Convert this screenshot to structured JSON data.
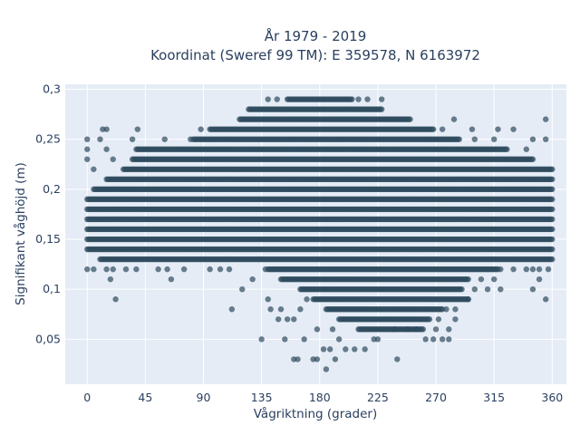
{
  "chart_data": {
    "type": "scatter",
    "title_line1": "År 1979 - 2019",
    "title_line2": "Koordinat (Sweref 99 TM): E 359578, N 6163972",
    "xlabel": "Vågriktning (grader)",
    "ylabel": "Signifikant våghöjd (m)",
    "xlim": [
      -17,
      371
    ],
    "ylim": [
      0.005,
      0.305
    ],
    "x_ticks": [
      0,
      45,
      90,
      135,
      180,
      225,
      270,
      315,
      360
    ],
    "x_tick_labels": [
      "0",
      "45",
      "90",
      "135",
      "180",
      "225",
      "270",
      "315",
      "360"
    ],
    "y_ticks": [
      0.05,
      0.1,
      0.15,
      0.2,
      0.25,
      0.3
    ],
    "y_tick_labels": [
      "0,05",
      "0,1",
      "0,15",
      "0,2",
      "0,25",
      "0,3"
    ],
    "grid": true,
    "marker_color": "#2f4b5e",
    "background": "#e5ecf6",
    "bands": [
      {
        "y": 0.29,
        "ranges": [
          [
            155,
            205
          ]
        ]
      },
      {
        "y": 0.28,
        "ranges": [
          [
            125,
            228
          ]
        ]
      },
      {
        "y": 0.27,
        "ranges": [
          [
            118,
            250
          ]
        ]
      },
      {
        "y": 0.26,
        "ranges": [
          [
            95,
            268
          ]
        ]
      },
      {
        "y": 0.25,
        "ranges": [
          [
            82,
            288
          ]
        ]
      },
      {
        "y": 0.24,
        "ranges": [
          [
            38,
            325
          ]
        ]
      },
      {
        "y": 0.23,
        "ranges": [
          [
            35,
            345
          ]
        ]
      },
      {
        "y": 0.22,
        "ranges": [
          [
            28,
            360
          ]
        ]
      },
      {
        "y": 0.21,
        "ranges": [
          [
            15,
            360
          ]
        ]
      },
      {
        "y": 0.2,
        "ranges": [
          [
            5,
            360
          ]
        ]
      },
      {
        "y": 0.19,
        "ranges": [
          [
            0,
            360
          ]
        ]
      },
      {
        "y": 0.18,
        "ranges": [
          [
            0,
            360
          ]
        ]
      },
      {
        "y": 0.17,
        "ranges": [
          [
            0,
            360
          ]
        ]
      },
      {
        "y": 0.16,
        "ranges": [
          [
            0,
            360
          ]
        ]
      },
      {
        "y": 0.15,
        "ranges": [
          [
            0,
            360
          ]
        ]
      },
      {
        "y": 0.14,
        "ranges": [
          [
            0,
            360
          ]
        ]
      },
      {
        "y": 0.13,
        "ranges": [
          [
            10,
            360
          ]
        ]
      },
      {
        "y": 0.12,
        "ranges": [
          [
            140,
            318
          ]
        ]
      },
      {
        "y": 0.11,
        "ranges": [
          [
            150,
            295
          ]
        ]
      },
      {
        "y": 0.1,
        "ranges": [
          [
            165,
            290
          ]
        ]
      },
      {
        "y": 0.09,
        "ranges": [
          [
            175,
            295
          ]
        ]
      },
      {
        "y": 0.08,
        "ranges": [
          [
            185,
            275
          ]
        ]
      },
      {
        "y": 0.07,
        "ranges": [
          [
            195,
            265
          ]
        ]
      },
      {
        "y": 0.06,
        "ranges": [
          [
            210,
            260
          ]
        ]
      }
    ],
    "points": [
      [
        0,
        0.25
      ],
      [
        10,
        0.25
      ],
      [
        35,
        0.25
      ],
      [
        60,
        0.25
      ],
      [
        80,
        0.25
      ],
      [
        300,
        0.25
      ],
      [
        315,
        0.25
      ],
      [
        345,
        0.25
      ],
      [
        355,
        0.25
      ],
      [
        0,
        0.24
      ],
      [
        15,
        0.24
      ],
      [
        340,
        0.24
      ],
      [
        12,
        0.26
      ],
      [
        15,
        0.26
      ],
      [
        39,
        0.26
      ],
      [
        88,
        0.26
      ],
      [
        275,
        0.26
      ],
      [
        298,
        0.26
      ],
      [
        318,
        0.26
      ],
      [
        330,
        0.26
      ],
      [
        355,
        0.27
      ],
      [
        284,
        0.27
      ],
      [
        140,
        0.29
      ],
      [
        147,
        0.29
      ],
      [
        210,
        0.29
      ],
      [
        217,
        0.29
      ],
      [
        228,
        0.29
      ],
      [
        0,
        0.23
      ],
      [
        5,
        0.22
      ],
      [
        20,
        0.23
      ],
      [
        0,
        0.12
      ],
      [
        5,
        0.12
      ],
      [
        15,
        0.12
      ],
      [
        20,
        0.12
      ],
      [
        30,
        0.12
      ],
      [
        38,
        0.12
      ],
      [
        55,
        0.12
      ],
      [
        62,
        0.12
      ],
      [
        75,
        0.12
      ],
      [
        95,
        0.12
      ],
      [
        103,
        0.12
      ],
      [
        110,
        0.12
      ],
      [
        320,
        0.12
      ],
      [
        330,
        0.12
      ],
      [
        340,
        0.12
      ],
      [
        345,
        0.12
      ],
      [
        350,
        0.12
      ],
      [
        357,
        0.12
      ],
      [
        18,
        0.11
      ],
      [
        65,
        0.11
      ],
      [
        350,
        0.11
      ],
      [
        345,
        0.1
      ],
      [
        22,
        0.09
      ],
      [
        355,
        0.09
      ],
      [
        320,
        0.1
      ],
      [
        112,
        0.08
      ],
      [
        120,
        0.1
      ],
      [
        128,
        0.11
      ],
      [
        138,
        0.12
      ],
      [
        140,
        0.09
      ],
      [
        142,
        0.08
      ],
      [
        148,
        0.07
      ],
      [
        155,
        0.07
      ],
      [
        150,
        0.08
      ],
      [
        160,
        0.07
      ],
      [
        165,
        0.08
      ],
      [
        170,
        0.09
      ],
      [
        135,
        0.05
      ],
      [
        153,
        0.05
      ],
      [
        168,
        0.05
      ],
      [
        178,
        0.06
      ],
      [
        190,
        0.06
      ],
      [
        195,
        0.05
      ],
      [
        160,
        0.03
      ],
      [
        163,
        0.03
      ],
      [
        175,
        0.03
      ],
      [
        178,
        0.03
      ],
      [
        183,
        0.04
      ],
      [
        188,
        0.04
      ],
      [
        192,
        0.03
      ],
      [
        200,
        0.04
      ],
      [
        207,
        0.04
      ],
      [
        215,
        0.04
      ],
      [
        222,
        0.05
      ],
      [
        225,
        0.05
      ],
      [
        185,
        0.02
      ],
      [
        240,
        0.03
      ],
      [
        238,
        0.06
      ],
      [
        248,
        0.06
      ],
      [
        255,
        0.06
      ],
      [
        262,
        0.05
      ],
      [
        268,
        0.05
      ],
      [
        275,
        0.05
      ],
      [
        280,
        0.05
      ],
      [
        270,
        0.06
      ],
      [
        280,
        0.06
      ],
      [
        285,
        0.07
      ],
      [
        272,
        0.07
      ],
      [
        278,
        0.08
      ],
      [
        285,
        0.08
      ],
      [
        295,
        0.09
      ],
      [
        300,
        0.1
      ],
      [
        305,
        0.11
      ],
      [
        310,
        0.1
      ],
      [
        315,
        0.11
      ]
    ]
  }
}
